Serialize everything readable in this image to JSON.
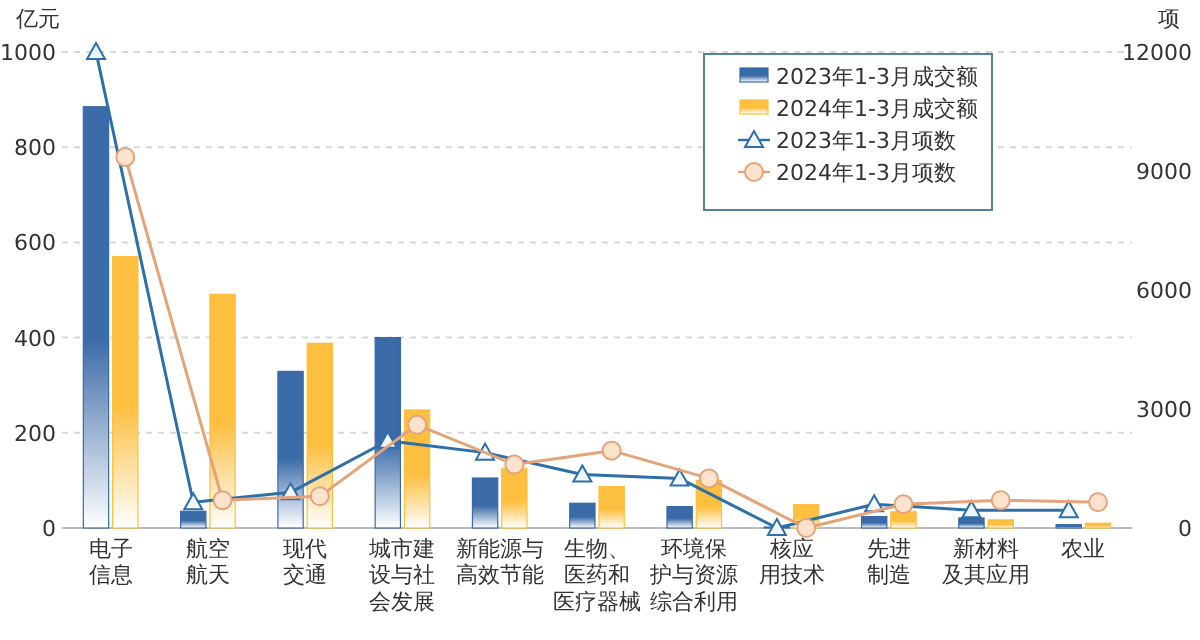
{
  "chart_data": {
    "type": "bar",
    "categories": [
      "电子信息",
      "航空航天",
      "现代交通",
      "城市建设与社会发展",
      "新能源与高效节能",
      "生物、医药和医疗器械",
      "环境保护与资源综合利用",
      "核应用技术",
      "先进制造",
      "新材料及其应用",
      "农业"
    ],
    "series": [
      {
        "name": "2023年1-3月成交额",
        "color": "#3a6aa8",
        "values": [
          885,
          35,
          329,
          400,
          105,
          52,
          45,
          2,
          24,
          21,
          7
        ]
      },
      {
        "name": "2024年1-3月成交额",
        "color": "#fdbf3f",
        "values": [
          570,
          491,
          388,
          248,
          125,
          87,
          100,
          49,
          34,
          17,
          10
        ]
      },
      {
        "name": "2023年1-3月项数",
        "type": "line",
        "axis": "y2",
        "marker": "triangle",
        "color": "#2e6fa7",
        "values": [
          12000,
          650,
          900,
          2200,
          1900,
          1350,
          1250,
          0,
          600,
          450,
          450
        ]
      },
      {
        "name": "2024年1-3月项数",
        "type": "line",
        "axis": "y2",
        "marker": "circle",
        "color": "#e3a47a",
        "values": [
          9350,
          700,
          800,
          2600,
          1600,
          1950,
          1250,
          0,
          600,
          700,
          650
        ]
      }
    ],
    "ylabel": "亿元",
    "y2label": "项",
    "ylim": [
      0,
      1000
    ],
    "yticks": [
      0,
      200,
      400,
      600,
      800,
      1000
    ],
    "y2lim": [
      0,
      12000
    ],
    "y2ticks": [
      0,
      3000,
      6000,
      9000,
      12000
    ],
    "grid": "y",
    "legend": "top right"
  }
}
